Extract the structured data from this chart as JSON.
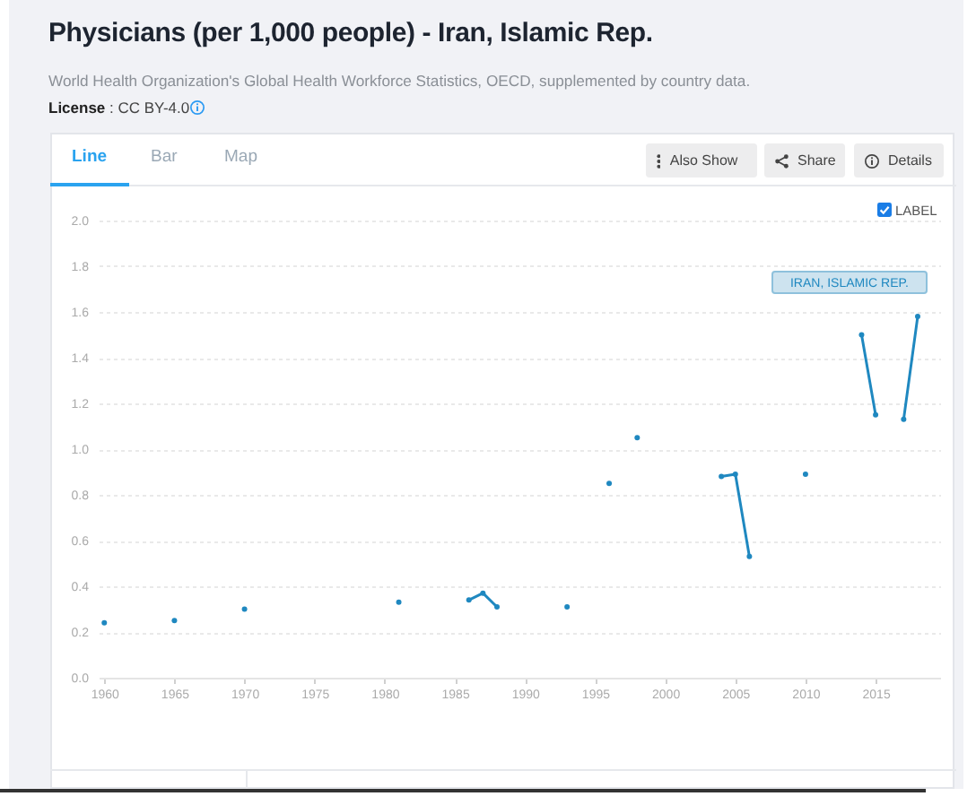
{
  "chart_data": {
    "type": "line",
    "title": "Physicians (per 1,000 people) - Iran, Islamic Rep.",
    "subtitle": "World Health Organization's Global Health Workforce Statistics, OECD, supplemented by country data.",
    "annotations": [
      "License : CC BY-4.0",
      "Line",
      "Bar",
      "Map",
      "Also Show",
      "Share",
      "Details",
      "LABEL"
    ],
    "x": [
      1960,
      1961,
      1962,
      1963,
      1964,
      1965,
      1966,
      1967,
      1968,
      1969,
      1970,
      1971,
      1972,
      1973,
      1974,
      1975,
      1976,
      1977,
      1978,
      1979,
      1980,
      1981,
      1982,
      1983,
      1984,
      1985,
      1986,
      1987,
      1988,
      1989,
      1990,
      1991,
      1992,
      1993,
      1994,
      1995,
      1996,
      1997,
      1998,
      1999,
      2000,
      2001,
      2002,
      2003,
      2004,
      2005,
      2006,
      2007,
      2008,
      2009,
      2010,
      2011,
      2012,
      2013,
      2014,
      2015,
      2016,
      2017,
      2018
    ],
    "series": [
      {
        "name": "IRAN, ISLAMIC REP.",
        "color": "#1f88c0",
        "values": [
          0.24,
          null,
          null,
          null,
          null,
          0.25,
          null,
          null,
          null,
          null,
          0.3,
          null,
          null,
          null,
          null,
          null,
          null,
          null,
          null,
          null,
          null,
          0.33,
          null,
          null,
          null,
          null,
          0.34,
          0.37,
          0.31,
          null,
          null,
          null,
          null,
          0.31,
          null,
          null,
          0.85,
          null,
          1.05,
          null,
          null,
          null,
          null,
          null,
          0.88,
          0.89,
          0.53,
          null,
          null,
          null,
          0.89,
          null,
          null,
          null,
          1.5,
          1.15,
          null,
          1.13,
          1.58
        ]
      }
    ],
    "xlim": [
      1959.6,
      2019.6
    ],
    "xticks": [
      1960,
      1965,
      1970,
      1975,
      1980,
      1985,
      1990,
      1995,
      2000,
      2005,
      2010,
      2015
    ],
    "ylim": [
      0,
      2
    ],
    "yticks": [
      {
        "value": 0,
        "label": "0.0"
      },
      0.2,
      0.4,
      0.6,
      0.8,
      {
        "value": 1,
        "label": "1.0"
      },
      1.2,
      1.4,
      1.6,
      1.8,
      {
        "value": 2,
        "label": "2.0"
      }
    ],
    "grid": "y",
    "marker": "circle",
    "line_style": "solid"
  }
}
